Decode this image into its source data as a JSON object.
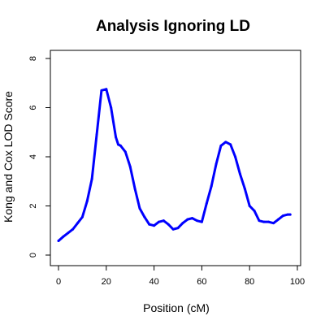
{
  "chart_data": {
    "type": "line",
    "title": "Analysis Ignoring LD",
    "xlabel": "Position (cM)",
    "ylabel": "Kong and Cox LOD Score",
    "xlim": [
      0,
      100
    ],
    "ylim": [
      0,
      8
    ],
    "x_ticks": [
      0,
      20,
      40,
      60,
      80,
      100
    ],
    "y_ticks": [
      0,
      2,
      4,
      6,
      8
    ],
    "x_tick_labels": [
      "0",
      "20",
      "40",
      "60",
      "80",
      "100"
    ],
    "y_tick_labels": [
      "0",
      "2",
      "4",
      "6",
      "8"
    ],
    "grid": false,
    "legend": "none",
    "series": [
      {
        "color": "#0000ff",
        "x": [
          0,
          2,
          4,
          6,
          8,
          10,
          12,
          14,
          16,
          18,
          20,
          22,
          24,
          25,
          26,
          28,
          30,
          32,
          34,
          36,
          38,
          40,
          42,
          44,
          46,
          48,
          50,
          52,
          54,
          56,
          58,
          60,
          62,
          64,
          66,
          68,
          70,
          72,
          74,
          76,
          78,
          80,
          82,
          84,
          86,
          88,
          90,
          92,
          94,
          96,
          97
        ],
        "y": [
          0.58,
          0.75,
          0.9,
          1.05,
          1.3,
          1.55,
          2.2,
          3.1,
          4.9,
          6.7,
          6.75,
          6.0,
          4.8,
          4.5,
          4.45,
          4.2,
          3.6,
          2.7,
          1.9,
          1.55,
          1.25,
          1.2,
          1.35,
          1.4,
          1.25,
          1.05,
          1.1,
          1.3,
          1.45,
          1.5,
          1.4,
          1.35,
          2.1,
          2.8,
          3.7,
          4.45,
          4.6,
          4.5,
          4.0,
          3.3,
          2.7,
          2.0,
          1.8,
          1.4,
          1.35,
          1.35,
          1.3,
          1.45,
          1.6,
          1.65,
          1.65
        ]
      }
    ]
  }
}
